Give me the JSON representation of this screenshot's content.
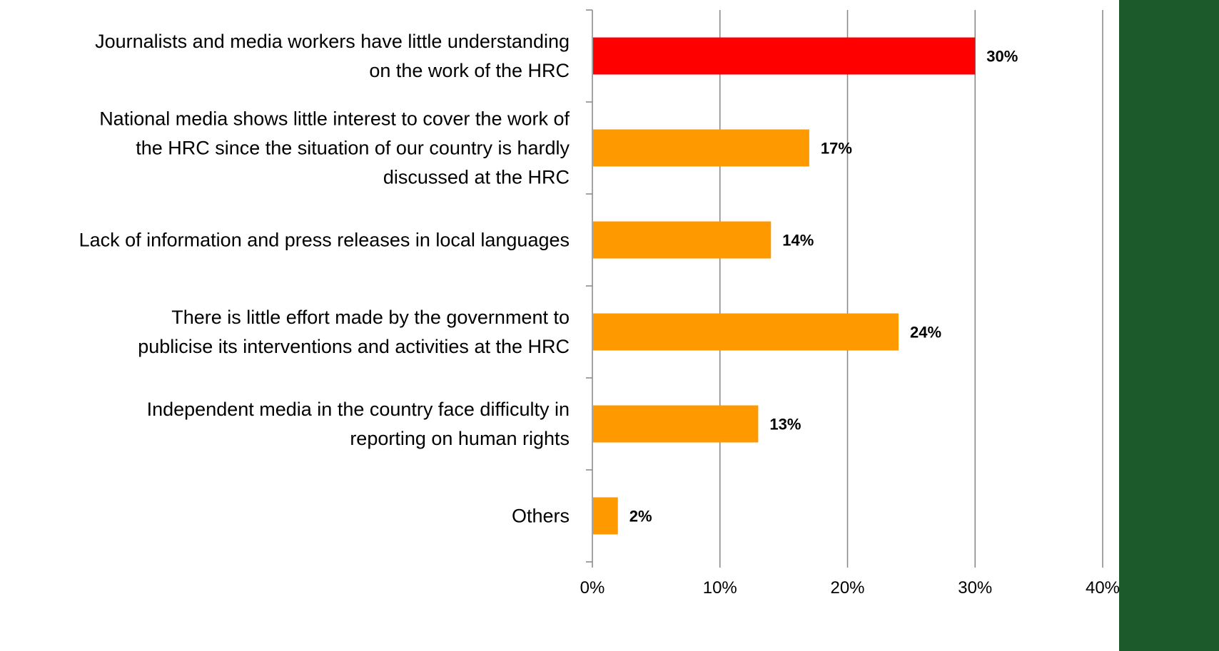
{
  "chart_data": {
    "type": "bar",
    "orientation": "horizontal",
    "categories": [
      [
        "Journalists and media workers have little understanding",
        "on the work of the HRC"
      ],
      [
        "National media shows little interest to cover the work of",
        "the HRC since the situation of our country is hardly",
        "discussed at the HRC"
      ],
      [
        "Lack of information and press releases in local languages"
      ],
      [
        "There is little effort made by the government to",
        "publicise its interventions and activities at the HRC"
      ],
      [
        "Independent media in the country face difficulty in",
        "reporting on human rights"
      ],
      [
        "Others"
      ]
    ],
    "values": [
      30,
      17,
      14,
      24,
      13,
      2
    ],
    "value_labels": [
      "30%",
      "17%",
      "14%",
      "24%",
      "13%",
      "2%"
    ],
    "bar_colors": [
      "#ff0000",
      "#ff9900",
      "#ff9900",
      "#ff9900",
      "#ff9900",
      "#ff9900"
    ],
    "xlim": [
      0,
      40
    ],
    "xticks": [
      0,
      10,
      20,
      30,
      40
    ],
    "xtick_labels": [
      "0%",
      "10%",
      "20%",
      "30%",
      "40%"
    ],
    "grid": "vertical",
    "gridline_color": "#868686",
    "axis_color": "#868686",
    "side_panel_color": "#1d5a2b"
  }
}
